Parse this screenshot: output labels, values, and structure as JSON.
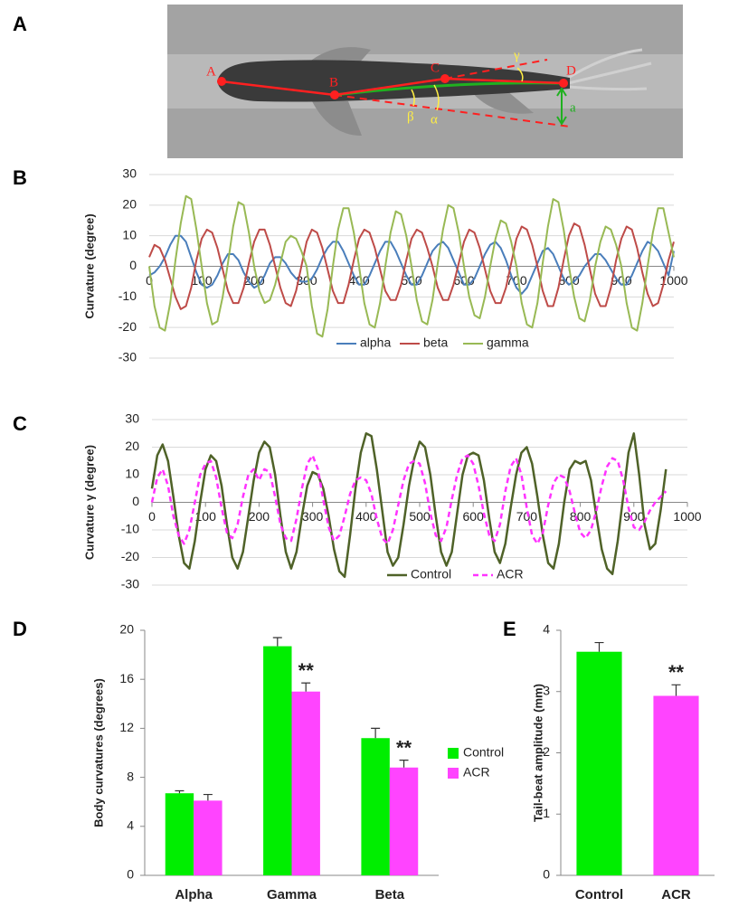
{
  "panel_labels": [
    "A",
    "B",
    "C",
    "D",
    "E"
  ],
  "photo": {
    "points": [
      "A",
      "B",
      "C",
      "D"
    ],
    "angles": [
      "α",
      "β",
      "γ"
    ],
    "amplitude": "a"
  },
  "chart_data": [
    {
      "type": "line",
      "ylabel": "Curvature (degree)",
      "x": [
        0,
        10,
        20,
        30,
        40,
        50,
        60,
        70,
        80,
        90,
        100,
        110,
        120,
        130,
        140,
        150,
        160,
        170,
        180,
        190,
        200,
        210,
        220,
        230,
        240,
        250,
        260,
        270,
        280,
        290,
        300,
        310,
        320,
        330,
        340,
        350,
        360,
        370,
        380,
        390,
        400,
        410,
        420,
        430,
        440,
        450,
        460,
        470,
        480,
        490,
        500,
        510,
        520,
        530,
        540,
        550,
        560,
        570,
        580,
        590,
        600,
        610,
        620,
        630,
        640,
        650,
        660,
        670,
        680,
        690,
        700,
        710,
        720,
        730,
        740,
        750,
        760,
        770,
        780,
        790,
        800,
        810,
        820,
        830,
        840,
        850,
        860,
        870,
        880,
        890,
        900,
        910,
        920,
        930,
        940,
        950,
        960,
        970,
        980,
        990,
        1000
      ],
      "series": [
        {
          "name": "alpha",
          "color": "#4a7ebb",
          "values": [
            -3,
            -2,
            0,
            3,
            7,
            10,
            10,
            8,
            3,
            -2,
            -6,
            -7,
            -6,
            -3,
            1,
            4,
            4,
            2,
            -2,
            -5,
            -7,
            -6,
            -3,
            1,
            3,
            3,
            1,
            -2,
            -4,
            -5,
            -5,
            -4,
            -1,
            3,
            6,
            8,
            8,
            5,
            1,
            -3,
            -6,
            -6,
            -3,
            1,
            5,
            8,
            8,
            5,
            1,
            -3,
            -6,
            -6,
            -3,
            1,
            5,
            7,
            8,
            6,
            2,
            -2,
            -6,
            -6,
            -4,
            0,
            4,
            7,
            8,
            6,
            2,
            -3,
            -7,
            -9,
            -7,
            -3,
            1,
            5,
            6,
            4,
            0,
            -4,
            -6,
            -5,
            -3,
            0,
            2,
            4,
            4,
            2,
            -1,
            -4,
            -6,
            -6,
            -3,
            1,
            5,
            8,
            7,
            5,
            1,
            -3,
            5
          ]
        },
        {
          "name": "beta",
          "color": "#be4b48",
          "values": [
            3,
            7,
            6,
            2,
            -4,
            -10,
            -14,
            -13,
            -7,
            2,
            9,
            12,
            11,
            6,
            -1,
            -8,
            -12,
            -12,
            -7,
            1,
            8,
            12,
            12,
            7,
            0,
            -7,
            -12,
            -13,
            -8,
            0,
            8,
            12,
            11,
            6,
            -1,
            -8,
            -12,
            -12,
            -6,
            2,
            9,
            12,
            11,
            6,
            -1,
            -8,
            -11,
            -11,
            -6,
            2,
            9,
            12,
            11,
            6,
            0,
            -7,
            -11,
            -11,
            -6,
            1,
            8,
            12,
            11,
            6,
            -1,
            -8,
            -12,
            -12,
            -7,
            1,
            9,
            13,
            12,
            7,
            0,
            -8,
            -13,
            -13,
            -7,
            2,
            10,
            14,
            13,
            7,
            -1,
            -9,
            -13,
            -13,
            -7,
            2,
            9,
            13,
            12,
            6,
            -2,
            -9,
            -13,
            -12,
            -6,
            2,
            8
          ]
        },
        {
          "name": "gamma",
          "color": "#98b954",
          "values": [
            0,
            -13,
            -20,
            -21,
            -12,
            2,
            14,
            23,
            22,
            12,
            0,
            -12,
            -19,
            -18,
            -10,
            1,
            13,
            21,
            20,
            11,
            0,
            -8,
            -12,
            -11,
            -6,
            1,
            8,
            10,
            9,
            5,
            0,
            -13,
            -22,
            -23,
            -14,
            0,
            12,
            19,
            19,
            11,
            0,
            -12,
            -19,
            -20,
            -12,
            0,
            11,
            18,
            17,
            10,
            0,
            -11,
            -18,
            -19,
            -11,
            1,
            12,
            20,
            19,
            11,
            0,
            -10,
            -16,
            -17,
            -10,
            0,
            9,
            15,
            14,
            8,
            0,
            -12,
            -19,
            -20,
            -12,
            1,
            13,
            22,
            21,
            12,
            0,
            -10,
            -17,
            -18,
            -11,
            0,
            8,
            13,
            12,
            7,
            0,
            -12,
            -20,
            -21,
            -12,
            0,
            11,
            19,
            19,
            11,
            3
          ]
        }
      ],
      "xlim": [
        0,
        1000
      ],
      "xticks": [
        0,
        100,
        200,
        300,
        400,
        500,
        600,
        700,
        800,
        900,
        1000
      ],
      "ylim": [
        -30,
        30
      ],
      "yticks": [
        -30,
        -20,
        -10,
        0,
        10,
        20,
        30
      ],
      "grid": true,
      "legend": "bottom"
    },
    {
      "type": "line",
      "ylabel": "Curvature γ (degree)",
      "x": [
        0,
        10,
        20,
        30,
        40,
        50,
        60,
        70,
        80,
        90,
        100,
        110,
        120,
        130,
        140,
        150,
        160,
        170,
        180,
        190,
        200,
        210,
        220,
        230,
        240,
        250,
        260,
        270,
        280,
        290,
        300,
        310,
        320,
        330,
        340,
        350,
        360,
        370,
        380,
        390,
        400,
        410,
        420,
        430,
        440,
        450,
        460,
        470,
        480,
        490,
        500,
        510,
        520,
        530,
        540,
        550,
        560,
        570,
        580,
        590,
        600,
        610,
        620,
        630,
        640,
        650,
        660,
        670,
        680,
        690,
        700,
        710,
        720,
        730,
        740,
        750,
        760,
        770,
        780,
        790,
        800,
        810,
        820,
        830,
        840,
        850,
        860,
        870,
        880,
        890,
        900,
        910,
        920,
        930,
        940,
        950,
        960
      ],
      "series": [
        {
          "name": "Control",
          "color": "#4f6228",
          "style": "solid",
          "values": [
            5,
            17,
            21,
            15,
            2,
            -12,
            -22,
            -24,
            -14,
            0,
            12,
            17,
            15,
            6,
            -8,
            -20,
            -24,
            -18,
            -5,
            8,
            18,
            22,
            20,
            10,
            -5,
            -18,
            -24,
            -18,
            -5,
            6,
            11,
            10,
            5,
            -5,
            -17,
            -25,
            -27,
            -12,
            5,
            18,
            25,
            24,
            12,
            -3,
            -18,
            -23,
            -20,
            -8,
            6,
            16,
            22,
            20,
            10,
            -5,
            -18,
            -23,
            -18,
            -4,
            10,
            17,
            18,
            17,
            8,
            -6,
            -18,
            -22,
            -15,
            -2,
            10,
            18,
            20,
            14,
            2,
            -12,
            -22,
            -24,
            -15,
            0,
            12,
            15,
            14,
            15,
            8,
            -5,
            -17,
            -24,
            -26,
            -14,
            2,
            18,
            25,
            10,
            -8,
            -17,
            -15,
            -3,
            12
          ]
        },
        {
          "name": "ACR",
          "color": "#ff33ff",
          "style": "dashed",
          "values": [
            0,
            9,
            12,
            6,
            -5,
            -12,
            -15,
            -10,
            0,
            10,
            14,
            15,
            9,
            -2,
            -11,
            -13,
            -8,
            2,
            10,
            12,
            8,
            12,
            11,
            2,
            -8,
            -13,
            -14,
            -6,
            5,
            14,
            17,
            12,
            1,
            -9,
            -14,
            -12,
            -5,
            3,
            8,
            9,
            8,
            3,
            -6,
            -13,
            -15,
            -10,
            -1,
            8,
            14,
            15,
            14,
            7,
            -4,
            -12,
            -14,
            -9,
            1,
            10,
            16,
            17,
            14,
            6,
            -4,
            -12,
            -14,
            -8,
            4,
            13,
            16,
            10,
            -2,
            -12,
            -15,
            -11,
            -1,
            7,
            10,
            9,
            4,
            -4,
            -11,
            -13,
            -10,
            -3,
            6,
            13,
            16,
            15,
            8,
            -2,
            -9,
            -10,
            -7,
            -3,
            0,
            2,
            4
          ]
        }
      ],
      "xlim": [
        0,
        1000
      ],
      "xticks": [
        0,
        100,
        200,
        300,
        400,
        500,
        600,
        700,
        800,
        900,
        1000
      ],
      "ylim": [
        -30,
        30
      ],
      "yticks": [
        -30,
        -20,
        -10,
        0,
        10,
        20,
        30
      ],
      "grid": true,
      "legend": "bottom"
    },
    {
      "type": "bar",
      "ylabel": "Body curvatures (degrees)",
      "categories": [
        "Alpha",
        "Gamma",
        "Beta"
      ],
      "series": [
        {
          "name": "Control",
          "color": "#00ee00",
          "values": [
            6.7,
            18.7,
            11.2
          ],
          "errors": [
            0.2,
            0.7,
            0.8
          ]
        },
        {
          "name": "ACR",
          "color": "#ff44ff",
          "values": [
            6.1,
            15.0,
            8.8
          ],
          "errors": [
            0.5,
            0.7,
            0.6
          ]
        }
      ],
      "ylim": [
        0,
        20
      ],
      "yticks": [
        0,
        4,
        8,
        12,
        16,
        20
      ],
      "legend": "right",
      "annotations": [
        {
          "text": "**",
          "at": "Gamma"
        },
        {
          "text": "**",
          "at": "Beta"
        }
      ]
    },
    {
      "type": "bar",
      "ylabel": "Tail-beat amplitude (mm)",
      "categories": [
        "Control",
        "ACR"
      ],
      "values": [
        3.65,
        2.93
      ],
      "errors": [
        0.15,
        0.18
      ],
      "colors": [
        "#00ee00",
        "#ff44ff"
      ],
      "ylim": [
        0,
        4
      ],
      "yticks": [
        0,
        1,
        2,
        3,
        4
      ],
      "annotations": [
        {
          "text": "**",
          "at": "ACR"
        }
      ]
    }
  ]
}
